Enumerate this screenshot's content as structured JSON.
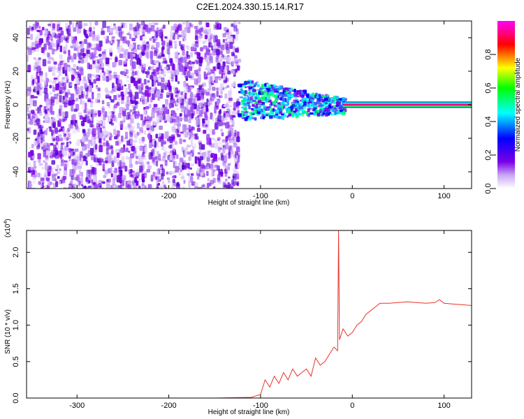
{
  "chart_data": [
    {
      "type": "heatmap",
      "title": "C2E1.2024.330.15.14.R17",
      "xlabel": "Height of straight line (km)",
      "ylabel": "Frequency (Hz)",
      "xlim": [
        -355,
        130
      ],
      "ylim": [
        -50,
        50
      ],
      "xticks": [
        -300,
        -200,
        -100,
        0,
        100
      ],
      "yticks": [
        -40,
        -20,
        0,
        20,
        40
      ],
      "colorbar": {
        "label": "Normalized spectral amplitude",
        "range": [
          0,
          1
        ],
        "ticks": [
          0.0,
          0.2,
          0.4,
          0.6,
          0.8
        ],
        "colormap": [
          "#ffffff",
          "#7b00e8",
          "#0000ff",
          "#00ffff",
          "#00ff00",
          "#ffff00",
          "#ff0000",
          "#ff00ff"
        ]
      },
      "regions": [
        {
          "x": [
            -355,
            -125
          ],
          "freq_band": [
            -50,
            50
          ],
          "level": 0.1
        },
        {
          "x": [
            -125,
            -10
          ],
          "freq_band": [
            -12,
            12
          ],
          "level": 0.35
        },
        {
          "x": [
            -10,
            130
          ],
          "freq_center": 0,
          "level": 1.0
        }
      ]
    },
    {
      "type": "line",
      "xlabel": "Height of straight line (km)",
      "ylabel": "SNR (10 * v/v)",
      "yscale_label": "(x10",
      "yscale_exp": "4",
      "xlim": [
        -355,
        130
      ],
      "ylim": [
        0,
        2.3
      ],
      "xticks": [
        -300,
        -200,
        -100,
        0,
        100
      ],
      "yticks": [
        0.0,
        0.5,
        1.0,
        1.5,
        2.0
      ],
      "color": "#e8332a",
      "x": [
        -355,
        -300,
        -250,
        -200,
        -150,
        -110,
        -100,
        -95,
        -90,
        -85,
        -80,
        -75,
        -70,
        -65,
        -60,
        -55,
        -50,
        -45,
        -40,
        -35,
        -30,
        -25,
        -20,
        -16,
        -15,
        -14,
        -10,
        -5,
        0,
        5,
        10,
        15,
        20,
        25,
        30,
        35,
        40,
        50,
        60,
        70,
        80,
        90,
        95,
        100,
        110,
        120,
        130
      ],
      "y": [
        0.0,
        0.0,
        0.0,
        0.0,
        0.0,
        0.01,
        0.05,
        0.25,
        0.15,
        0.3,
        0.2,
        0.35,
        0.25,
        0.4,
        0.3,
        0.35,
        0.4,
        0.3,
        0.55,
        0.45,
        0.5,
        0.6,
        0.7,
        0.65,
        2.3,
        0.8,
        0.95,
        0.85,
        0.9,
        1.0,
        1.05,
        1.15,
        1.2,
        1.25,
        1.3,
        1.3,
        1.3,
        1.31,
        1.32,
        1.31,
        1.3,
        1.31,
        1.35,
        1.3,
        1.29,
        1.28,
        1.27
      ]
    }
  ]
}
